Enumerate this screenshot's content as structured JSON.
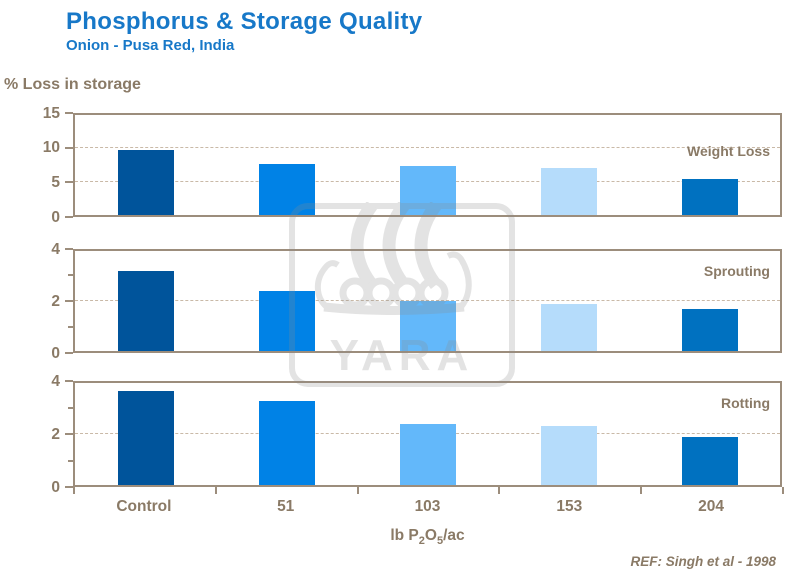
{
  "header": {
    "title": "Phosphorus & Storage Quality",
    "subtitle": "Onion - Pusa Red, India"
  },
  "reference": "REF: Singh et al - 1998",
  "watermark": {
    "icon": "yara-viking-ship-logo",
    "text": "YARA"
  },
  "colors": {
    "title_blue": "#1778C8",
    "axis_text_brown": "#8A7A66",
    "panel_border": "#9C8D7C",
    "gridline": "#C9B9A7",
    "watermark_gray": "#8C8C8C"
  },
  "chart_data": {
    "type": "bar",
    "categories": [
      "Control",
      "51",
      "103",
      "153",
      "204"
    ],
    "xlabel": "lb P2O5/ac",
    "xlabel_parts": {
      "prefix": "lb P",
      "sub1": "2",
      "mid": "O",
      "sub2": "5",
      "suffix": "/ac"
    },
    "ylabel": "% Loss in storage",
    "grid": "dashed-horizontal",
    "legend_position": "inside-top-right-per-panel",
    "bar_colors": [
      "#00549B",
      "#0082E6",
      "#63B8FA",
      "#B5DCFB",
      "#0071C0"
    ],
    "panels": [
      {
        "name": "Weight Loss",
        "values": [
          9.8,
          7.6,
          7.4,
          7.0,
          5.4
        ],
        "ylim": [
          0,
          15
        ],
        "yticks": [
          0,
          5,
          10,
          15
        ],
        "minor_ticks": [],
        "gridlines": [
          5,
          10
        ],
        "x_ticks": false
      },
      {
        "name": "Sprouting",
        "values": [
          3.2,
          2.4,
          2.0,
          1.9,
          1.7
        ],
        "ylim": [
          0,
          4
        ],
        "yticks": [
          0,
          2,
          4
        ],
        "minor_ticks": [
          1,
          3
        ],
        "gridlines": [
          2
        ],
        "x_ticks": false
      },
      {
        "name": "Rotting",
        "values": [
          3.7,
          3.3,
          2.4,
          2.3,
          1.9
        ],
        "ylim": [
          0,
          4
        ],
        "yticks": [
          0,
          2,
          4
        ],
        "minor_ticks": [
          1,
          3
        ],
        "gridlines": [
          2
        ],
        "x_ticks": true
      }
    ]
  }
}
